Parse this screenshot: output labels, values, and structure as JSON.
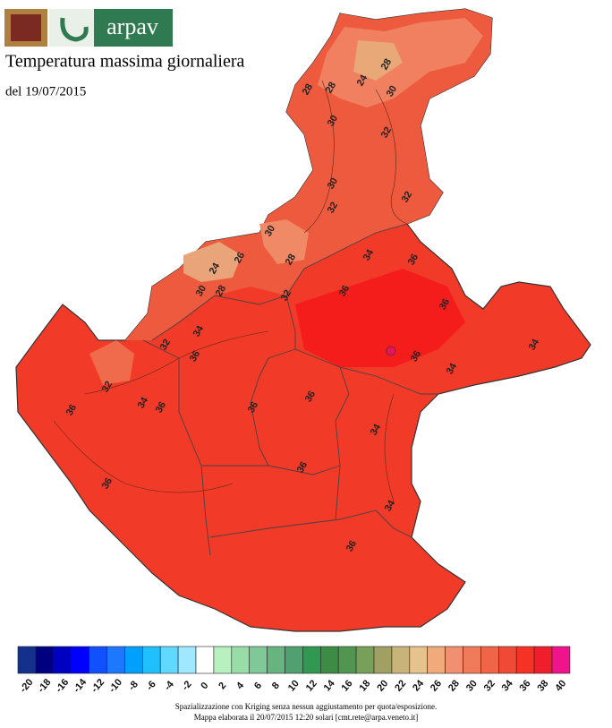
{
  "header": {
    "logo_text": "arpav",
    "title": "Temperatura massima giornaliera",
    "date": "del 19/07/2015"
  },
  "map": {
    "contour_labels": [
      28,
      24,
      30,
      28,
      28,
      30,
      32,
      30,
      32,
      32,
      30,
      28,
      24,
      26,
      28,
      30,
      32,
      34,
      36,
      36,
      36,
      34,
      32,
      36,
      32,
      34,
      36,
      36,
      36,
      36,
      36,
      34,
      34,
      34,
      36,
      36,
      34,
      36
    ]
  },
  "legend": {
    "labels": [
      -20,
      -18,
      -16,
      -14,
      -12,
      -10,
      -8,
      -6,
      -4,
      -2,
      0,
      2,
      4,
      6,
      8,
      10,
      12,
      14,
      16,
      18,
      20,
      22,
      24,
      26,
      28,
      30,
      32,
      34,
      36,
      38,
      40
    ],
    "colors": [
      "#12308c",
      "#000080",
      "#0000c0",
      "#0000ff",
      "#1050ff",
      "#1e78ff",
      "#00a0ff",
      "#20c0ff",
      "#60d8ff",
      "#a0e8ff",
      "#ffffff",
      "#b8f0c0",
      "#98dca8",
      "#80c898",
      "#68b480",
      "#50a070",
      "#309850",
      "#3c8c46",
      "#509650",
      "#78a05a",
      "#a0a064",
      "#c8b478",
      "#e6c38c",
      "#f0aa7c",
      "#f09070",
      "#f07a5a",
      "#f06448",
      "#f04a36",
      "#f53224",
      "#f01e2d",
      "#f0148c"
    ]
  },
  "footer": {
    "line1": "Spazializzazione con Kriging senza nessun aggiustamento per quota/esposizione.",
    "line2": "Mappa elaborata il 20/07/2015 12:20 solari [cmt.rete@arpa.veneto.it]"
  }
}
